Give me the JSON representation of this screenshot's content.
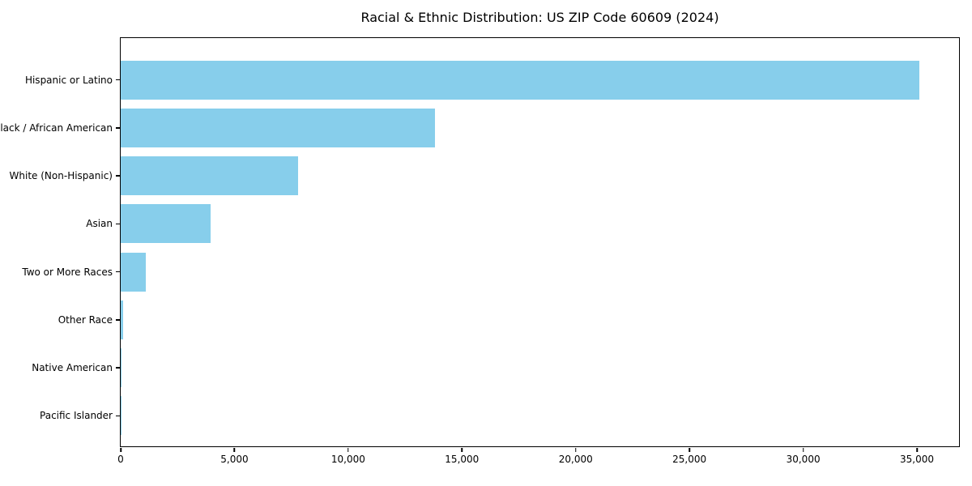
{
  "chart_data": {
    "type": "bar",
    "orientation": "horizontal",
    "title": "Racial & Ethnic Distribution: US ZIP Code 60609 (2024)",
    "categories": [
      "Hispanic or Latino",
      "Black / African American",
      "White (Non-Hispanic)",
      "Asian",
      "Two or More Races",
      "Other Race",
      "Native American",
      "Pacific Islander"
    ],
    "values": [
      35100,
      13800,
      7800,
      3950,
      1100,
      120,
      40,
      10
    ],
    "xlabel": "",
    "ylabel": "",
    "xlim": [
      0,
      36850
    ],
    "xticks": [
      0,
      5000,
      10000,
      15000,
      20000,
      25000,
      30000,
      35000
    ],
    "xtick_labels": [
      "0",
      "5,000",
      "10,000",
      "15,000",
      "20,000",
      "25,000",
      "30,000",
      "35,000"
    ],
    "bar_color": "#87CEEB",
    "axis_color": "#000000",
    "plot_bg": "#FFFFFF",
    "grid": false,
    "legend": null
  }
}
